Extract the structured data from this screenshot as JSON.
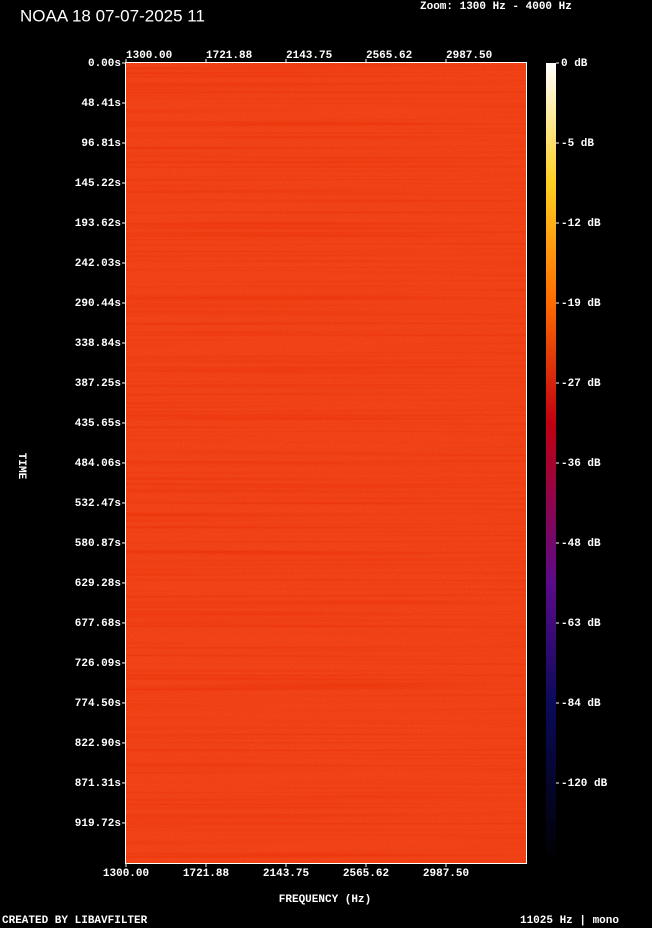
{
  "chart_data": {
    "type": "spectrogram",
    "title": "NOAA 18 07-07-2025 11",
    "subtitle": "Zoom: 1300 Hz - 4000 Hz",
    "x_label": "FREQUENCY (Hz)",
    "y_label": "TIME",
    "xlim": [
      1300,
      3409.375
    ],
    "xticks": [
      {
        "value": 1300,
        "label": "1300.00"
      },
      1721.88,
      2143.75,
      2565.62,
      {
        "value": 2987.5,
        "label": "2987.50"
      }
    ],
    "ylim": [
      0,
      968.2
    ],
    "yticks": [
      {
        "value": 0,
        "label": "0.00s"
      },
      {
        "value": 48.41,
        "label": "48.41s"
      },
      {
        "value": 96.81,
        "label": "96.81s"
      },
      {
        "value": 145.22,
        "label": "145.22s"
      },
      {
        "value": 193.62,
        "label": "193.62s"
      },
      {
        "value": 242.03,
        "label": "242.03s"
      },
      {
        "value": 290.44,
        "label": "290.44s"
      },
      {
        "value": 338.84,
        "label": "338.84s"
      },
      {
        "value": 387.25,
        "label": "387.25s"
      },
      {
        "value": 435.65,
        "label": "435.65s"
      },
      {
        "value": 484.06,
        "label": "484.06s"
      },
      {
        "value": 532.47,
        "label": "532.47s"
      },
      {
        "value": 580.87,
        "label": "580.87s"
      },
      {
        "value": 629.28,
        "label": "629.28s"
      },
      {
        "value": 677.68,
        "label": "677.68s"
      },
      {
        "value": 726.09,
        "label": "726.09s"
      },
      {
        "value": 774.5,
        "label": "774.50s"
      },
      {
        "value": 822.9,
        "label": "822.90s"
      },
      {
        "value": 871.31,
        "label": "871.31s"
      },
      {
        "value": 919.72,
        "label": "919.72s"
      }
    ],
    "colorbar_ticks": [
      {
        "value": 0,
        "label": "0 dB"
      },
      {
        "value": -5,
        "label": "-5 dB"
      },
      {
        "value": -12,
        "label": "-12 dB"
      },
      {
        "value": -19,
        "label": "-19 dB"
      },
      {
        "value": -27,
        "label": "-27 dB"
      },
      {
        "value": -36,
        "label": "-36 dB"
      },
      {
        "value": -48,
        "label": "-48 dB"
      },
      {
        "value": -63,
        "label": "-63 dB"
      },
      {
        "value": -84,
        "label": "-84 dB"
      },
      {
        "value": -120,
        "label": "-120 dB"
      }
    ],
    "footer_left": "CREATED BY LIBAVFILTER",
    "footer_right": "11025 Hz | mono"
  }
}
